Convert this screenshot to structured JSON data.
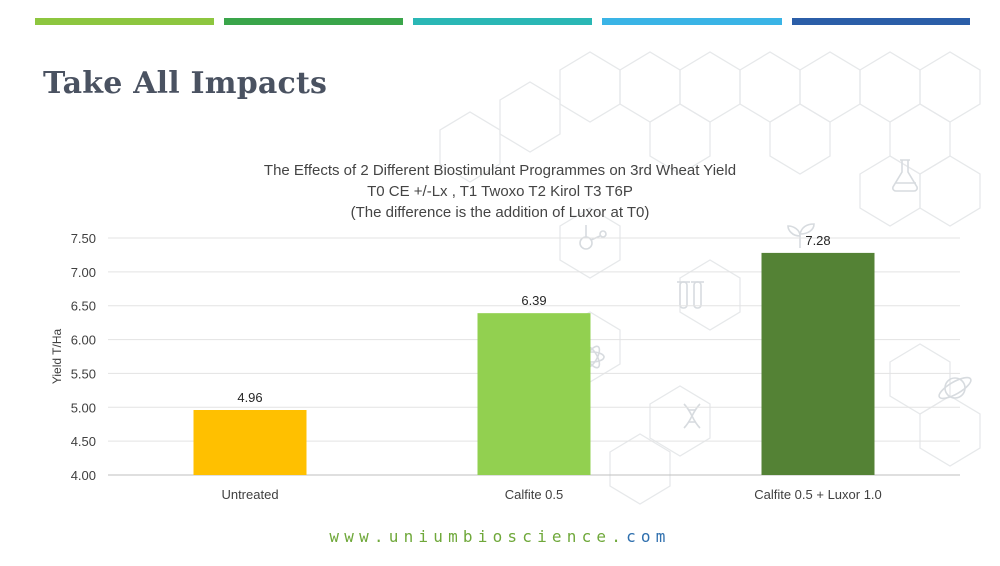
{
  "slide": {
    "title": "Take All Impacts",
    "website_prefix": "www.",
    "website_domain": "uniumbioscience.",
    "website_suffix": "com",
    "stripe_colors": [
      "#8dc63f",
      "#3aa54a",
      "#2ab7b5",
      "#3ab4e6",
      "#2b5ea8"
    ]
  },
  "chart_data": {
    "type": "bar",
    "title_lines": [
      "The Effects of 2 Different Biostimulant Programmes on 3rd Wheat Yield",
      "T0 CE +/-Lx , T1 Twoxo T2 Kirol T3 T6P",
      "(The difference is the addition of Luxor at T0)"
    ],
    "categories": [
      "Untreated",
      "Calfite 0.5",
      "Calfite 0.5 + Luxor 1.0"
    ],
    "values": [
      4.96,
      6.39,
      7.28
    ],
    "value_labels": [
      "4.96",
      "6.39",
      "7.28"
    ],
    "bar_colors": [
      "#ffc000",
      "#92d050",
      "#548235"
    ],
    "ylabel": "Yield T/Ha",
    "ylim": [
      4.0,
      7.5
    ],
    "yticks": [
      "4.00",
      "4.50",
      "5.00",
      "5.50",
      "6.00",
      "6.50",
      "7.00",
      "7.50"
    ],
    "grid": true
  },
  "background_icons": [
    "hexagon-network",
    "flask-icon",
    "molecule-icon",
    "test-tubes-icon",
    "sprout-icon",
    "atom-icon",
    "dna-icon",
    "planet-icon"
  ]
}
